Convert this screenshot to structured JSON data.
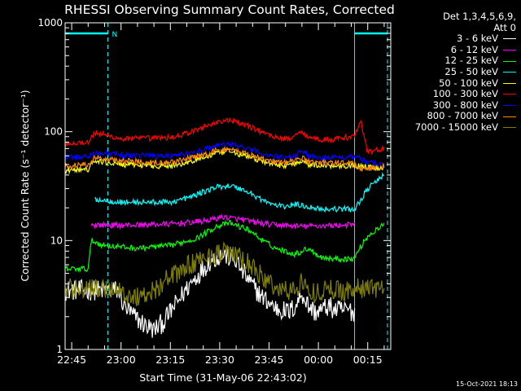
{
  "chart_data": {
    "type": "line",
    "title": "RHESSI Observing Summary Count Rates, Corrected",
    "ylabel": "Corrected Count Rate (s⁻¹ detector⁻¹)",
    "xlabel": "Start Time (31-May-06 22:43:02)",
    "yscale": "log",
    "ylim": [
      1,
      1000
    ],
    "xlim": [
      -2,
      97
    ],
    "x_unit": "minutes after 22:45",
    "yticks": [
      {
        "value": 1,
        "label": "1"
      },
      {
        "value": 10,
        "label": "10"
      },
      {
        "value": 100,
        "label": "100"
      },
      {
        "value": 1000,
        "label": "1000"
      }
    ],
    "xticks": [
      {
        "value": 0,
        "label": "22:45"
      },
      {
        "value": 15,
        "label": "23:00"
      },
      {
        "value": 30,
        "label": "23:15"
      },
      {
        "value": 45,
        "label": "23:30"
      },
      {
        "value": 60,
        "label": "23:45"
      },
      {
        "value": 75,
        "label": "00:00"
      },
      {
        "value": 90,
        "label": "00:15"
      }
    ],
    "night_marker": {
      "label": "N",
      "intervals": [
        [
          -2,
          11
        ],
        [
          86,
          96
        ]
      ],
      "level": 800
    },
    "series": [
      {
        "name": "3 - 6 keV",
        "color": "#ffffff",
        "x": [
          -2,
          7,
          8,
          14,
          16,
          19,
          22,
          25,
          28,
          32,
          36,
          42,
          46,
          50,
          54,
          58,
          62,
          66,
          68,
          70,
          72,
          74,
          76,
          78,
          80,
          84,
          86
        ],
        "y": [
          3.5,
          3.5,
          3.5,
          3.5,
          2.5,
          2,
          1.7,
          1.5,
          1.8,
          2.7,
          4,
          6.5,
          7.5,
          6.5,
          4.2,
          3,
          2.4,
          2.2,
          2.5,
          3.3,
          2.5,
          2.2,
          2.3,
          2.5,
          2.3,
          2.3,
          2.2
        ]
      },
      {
        "name": "6 - 12 keV",
        "color": "#ff00ff",
        "x": [
          6,
          15,
          30,
          40,
          46,
          52,
          60,
          70,
          80,
          86
        ],
        "y": [
          14,
          13.8,
          14.2,
          15,
          16.5,
          15.5,
          14,
          13.5,
          13.8,
          14
        ]
      },
      {
        "name": "12 - 25 keV",
        "color": "#00ff00",
        "x": [
          -2,
          5,
          6,
          10,
          20,
          30,
          38,
          44,
          48,
          54,
          58,
          62,
          68,
          72,
          76,
          80,
          86,
          87,
          90,
          95
        ],
        "y": [
          5.5,
          5.5,
          10,
          9,
          8.5,
          9,
          10.5,
          13.5,
          14.5,
          12.5,
          10,
          8.5,
          7.5,
          8.5,
          7,
          6.8,
          6.8,
          8,
          11,
          14
        ]
      },
      {
        "name": "25 - 50 keV",
        "color": "#00ffff",
        "x": [
          7,
          15,
          30,
          36,
          40,
          44,
          48,
          52,
          56,
          60,
          64,
          68,
          72,
          76,
          80,
          86,
          88,
          90,
          95
        ],
        "y": [
          24,
          22.5,
          22.5,
          25,
          28,
          31,
          32,
          29.5,
          25.5,
          22,
          20.5,
          21.5,
          20.5,
          19.5,
          19.5,
          19.5,
          24,
          30,
          40
        ]
      },
      {
        "name": "50 - 100 keV",
        "color": "#ffff00",
        "x": [
          -2,
          5,
          7,
          15,
          30,
          36,
          40,
          44,
          48,
          52,
          56,
          60,
          64,
          68,
          70,
          72,
          76,
          80,
          86,
          88,
          95
        ],
        "y": [
          44,
          45,
          54,
          50,
          48,
          53,
          58,
          63,
          66,
          61,
          56,
          51,
          49,
          51,
          55,
          50,
          49,
          49,
          49,
          48,
          46
        ]
      },
      {
        "name": "100 - 300 keV",
        "color": "#ff0000",
        "x": [
          -2,
          5,
          7,
          10,
          15,
          30,
          36,
          40,
          44,
          48,
          52,
          56,
          60,
          64,
          68,
          70,
          72,
          76,
          80,
          86,
          87,
          88,
          90,
          95
        ],
        "y": [
          78,
          80,
          98,
          93,
          86,
          88,
          98,
          110,
          122,
          127,
          118,
          105,
          93,
          86,
          90,
          103,
          88,
          85,
          85,
          92,
          108,
          120,
          65,
          70
        ]
      },
      {
        "name": "300 - 800 keV",
        "color": "#0000ff",
        "x": [
          -2,
          5,
          7,
          15,
          30,
          36,
          40,
          44,
          48,
          52,
          56,
          60,
          64,
          68,
          70,
          72,
          76,
          80,
          86,
          88,
          90,
          95
        ],
        "y": [
          58,
          59,
          64,
          61,
          60,
          63,
          68,
          74,
          77,
          72,
          66,
          61,
          58,
          60,
          68,
          60,
          58,
          58,
          60,
          56,
          52,
          50
        ]
      },
      {
        "name": "800 - 7000 keV",
        "color": "#ff8c00",
        "x": [
          -2,
          5,
          7,
          15,
          30,
          36,
          40,
          44,
          48,
          52,
          56,
          60,
          64,
          68,
          70,
          72,
          76,
          80,
          86,
          88,
          95
        ],
        "y": [
          48,
          50,
          58,
          54,
          52,
          57,
          61,
          67,
          69,
          65,
          59,
          54,
          52,
          54,
          58,
          53,
          52,
          52,
          51,
          45,
          48
        ]
      },
      {
        "name": "7000 - 15000 keV",
        "color": "#808000",
        "x": [
          -2,
          7,
          14,
          16,
          19,
          22,
          25,
          28,
          32,
          36,
          42,
          46,
          50,
          54,
          58,
          62,
          66,
          68,
          70,
          72,
          74,
          76,
          78,
          80,
          84,
          86,
          87,
          90,
          95
        ],
        "y": [
          3.6,
          3.6,
          3.6,
          3.2,
          3,
          3.2,
          3.5,
          4.2,
          5,
          6,
          7.3,
          7.8,
          7.3,
          6,
          4.6,
          3.7,
          3.4,
          3.6,
          4.3,
          3.4,
          3.3,
          3.5,
          3.6,
          3.5,
          3.5,
          3.6,
          3.6,
          3.7,
          3.7
        ]
      }
    ]
  },
  "legend_header": "Det 1,3,4,5,6,9,",
  "legend_att": "Att 0",
  "timestamp": "15-Oct-2021 18:13"
}
